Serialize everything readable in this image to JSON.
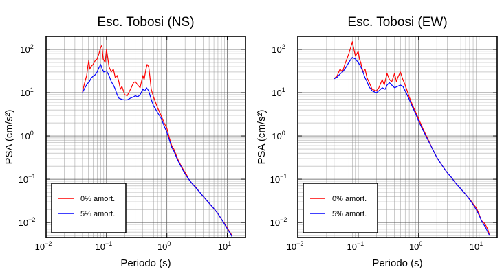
{
  "chart_data": [
    {
      "type": "line",
      "title": "Esc. Tobosi (NS)",
      "xlabel": "Periodo (s)",
      "ylabel": "PSA (cm/s²)",
      "x_scale": "log",
      "y_scale": "log",
      "xlim": [
        0.01,
        20
      ],
      "ylim": [
        0.0045,
        200
      ],
      "grid": true,
      "legend_position": "bottom-left",
      "x_ticks": [
        {
          "base": "10",
          "exp": "−2"
        },
        {
          "base": "10",
          "exp": "−1"
        },
        {
          "base": "10",
          "exp": "0"
        },
        {
          "base": "10",
          "exp": "1"
        }
      ],
      "y_ticks": [
        {
          "base": "10",
          "exp": "−2"
        },
        {
          "base": "10",
          "exp": "−1"
        },
        {
          "base": "10",
          "exp": "0"
        },
        {
          "base": "10",
          "exp": "1"
        },
        {
          "base": "10",
          "exp": "2"
        }
      ],
      "series": [
        {
          "name": "0% amort.",
          "color": "#ff0000",
          "points": [
            [
              0.04,
              10.5
            ],
            [
              0.044,
              18
            ],
            [
              0.047,
              25
            ],
            [
              0.049,
              40
            ],
            [
              0.051,
              55
            ],
            [
              0.053,
              35
            ],
            [
              0.055,
              40
            ],
            [
              0.06,
              45
            ],
            [
              0.065,
              55
            ],
            [
              0.07,
              60
            ],
            [
              0.075,
              80
            ],
            [
              0.08,
              110
            ],
            [
              0.084,
              125
            ],
            [
              0.088,
              60
            ],
            [
              0.095,
              50
            ],
            [
              0.1,
              100
            ],
            [
              0.104,
              70
            ],
            [
              0.11,
              40
            ],
            [
              0.12,
              30
            ],
            [
              0.13,
              35
            ],
            [
              0.14,
              22
            ],
            [
              0.15,
              25
            ],
            [
              0.16,
              18
            ],
            [
              0.17,
              12
            ],
            [
              0.18,
              14
            ],
            [
              0.2,
              9
            ],
            [
              0.22,
              8.5
            ],
            [
              0.25,
              12
            ],
            [
              0.28,
              17
            ],
            [
              0.3,
              18
            ],
            [
              0.33,
              15
            ],
            [
              0.36,
              13
            ],
            [
              0.4,
              25
            ],
            [
              0.42,
              20
            ],
            [
              0.45,
              35
            ],
            [
              0.47,
              45
            ],
            [
              0.5,
              40
            ],
            [
              0.52,
              25
            ],
            [
              0.55,
              12
            ],
            [
              0.6,
              8
            ],
            [
              0.7,
              4.5
            ],
            [
              0.8,
              3
            ],
            [
              0.9,
              2
            ],
            [
              1.0,
              1.5
            ],
            [
              1.1,
              0.9
            ],
            [
              1.2,
              0.6
            ],
            [
              1.3,
              0.5
            ],
            [
              1.5,
              0.3
            ],
            [
              1.7,
              0.21
            ],
            [
              1.9,
              0.16
            ],
            [
              2.1,
              0.13
            ],
            [
              2.3,
              0.1
            ],
            [
              2.6,
              0.08
            ],
            [
              3.0,
              0.066
            ],
            [
              3.5,
              0.05
            ],
            [
              4.0,
              0.04
            ],
            [
              5.0,
              0.028
            ],
            [
              6.0,
              0.021
            ],
            [
              7.0,
              0.016
            ],
            [
              8.0,
              0.012
            ],
            [
              9.0,
              0.0095
            ],
            [
              10.0,
              0.0075
            ],
            [
              11.0,
              0.006
            ],
            [
              12.0,
              0.005
            ]
          ]
        },
        {
          "name": "5% amort.",
          "color": "#0000ff",
          "points": [
            [
              0.04,
              10
            ],
            [
              0.044,
              13
            ],
            [
              0.048,
              16
            ],
            [
              0.052,
              18
            ],
            [
              0.056,
              22
            ],
            [
              0.06,
              24
            ],
            [
              0.065,
              26
            ],
            [
              0.07,
              30
            ],
            [
              0.075,
              38
            ],
            [
              0.08,
              45
            ],
            [
              0.085,
              35
            ],
            [
              0.09,
              30
            ],
            [
              0.1,
              32
            ],
            [
              0.11,
              25
            ],
            [
              0.12,
              18
            ],
            [
              0.13,
              15
            ],
            [
              0.14,
              12
            ],
            [
              0.15,
              9
            ],
            [
              0.16,
              7.5
            ],
            [
              0.18,
              7
            ],
            [
              0.2,
              6.8
            ],
            [
              0.22,
              6.8
            ],
            [
              0.25,
              7.5
            ],
            [
              0.28,
              8
            ],
            [
              0.3,
              8.5
            ],
            [
              0.33,
              8
            ],
            [
              0.36,
              9
            ],
            [
              0.4,
              12
            ],
            [
              0.43,
              11
            ],
            [
              0.46,
              13
            ],
            [
              0.5,
              11
            ],
            [
              0.55,
              7
            ],
            [
              0.6,
              5
            ],
            [
              0.7,
              3.5
            ],
            [
              0.8,
              2.6
            ],
            [
              0.9,
              1.7
            ],
            [
              1.0,
              1.2
            ],
            [
              1.1,
              0.8
            ],
            [
              1.2,
              0.55
            ],
            [
              1.3,
              0.45
            ],
            [
              1.5,
              0.28
            ],
            [
              1.7,
              0.2
            ],
            [
              1.9,
              0.15
            ],
            [
              2.1,
              0.12
            ],
            [
              2.3,
              0.1
            ],
            [
              2.6,
              0.08
            ],
            [
              3.0,
              0.064
            ],
            [
              3.5,
              0.05
            ],
            [
              4.0,
              0.04
            ],
            [
              5.0,
              0.028
            ],
            [
              6.0,
              0.021
            ],
            [
              7.0,
              0.016
            ],
            [
              8.0,
              0.012
            ],
            [
              9.0,
              0.0092
            ],
            [
              10.0,
              0.0072
            ],
            [
              11.0,
              0.0058
            ],
            [
              12.0,
              0.0047
            ]
          ]
        }
      ]
    },
    {
      "type": "line",
      "title": "Esc. Tobosi (EW)",
      "xlabel": "Periodo (s)",
      "ylabel": "PSA (cm/s²)",
      "x_scale": "log",
      "y_scale": "log",
      "xlim": [
        0.01,
        20
      ],
      "ylim": [
        0.0045,
        200
      ],
      "grid": true,
      "legend_position": "bottom-left",
      "x_ticks": [
        {
          "base": "10",
          "exp": "−2"
        },
        {
          "base": "10",
          "exp": "−1"
        },
        {
          "base": "10",
          "exp": "0"
        },
        {
          "base": "10",
          "exp": "1"
        }
      ],
      "y_ticks": [
        {
          "base": "10",
          "exp": "−2"
        },
        {
          "base": "10",
          "exp": "−1"
        },
        {
          "base": "10",
          "exp": "0"
        },
        {
          "base": "10",
          "exp": "1"
        },
        {
          "base": "10",
          "exp": "2"
        }
      ],
      "series": [
        {
          "name": "0% amort.",
          "color": "#ff0000",
          "points": [
            [
              0.04,
              21
            ],
            [
              0.045,
              25
            ],
            [
              0.05,
              35
            ],
            [
              0.055,
              30
            ],
            [
              0.06,
              45
            ],
            [
              0.065,
              60
            ],
            [
              0.07,
              80
            ],
            [
              0.075,
              110
            ],
            [
              0.08,
              150
            ],
            [
              0.085,
              100
            ],
            [
              0.09,
              70
            ],
            [
              0.1,
              90
            ],
            [
              0.105,
              60
            ],
            [
              0.11,
              50
            ],
            [
              0.12,
              30
            ],
            [
              0.13,
              35
            ],
            [
              0.14,
              22
            ],
            [
              0.15,
              18
            ],
            [
              0.17,
              12
            ],
            [
              0.2,
              11
            ],
            [
              0.22,
              13
            ],
            [
              0.25,
              20
            ],
            [
              0.27,
              15
            ],
            [
              0.3,
              28
            ],
            [
              0.33,
              20
            ],
            [
              0.36,
              18
            ],
            [
              0.4,
              28
            ],
            [
              0.43,
              18
            ],
            [
              0.45,
              22
            ],
            [
              0.5,
              30
            ],
            [
              0.55,
              20
            ],
            [
              0.6,
              15
            ],
            [
              0.7,
              8
            ],
            [
              0.8,
              5
            ],
            [
              0.9,
              3.5
            ],
            [
              1.0,
              2.5
            ],
            [
              1.2,
              1.4
            ],
            [
              1.4,
              0.9
            ],
            [
              1.7,
              0.5
            ],
            [
              2.0,
              0.32
            ],
            [
              2.5,
              0.2
            ],
            [
              3.0,
              0.14
            ],
            [
              3.5,
              0.11
            ],
            [
              4.0,
              0.085
            ],
            [
              5.0,
              0.06
            ],
            [
              6.0,
              0.045
            ],
            [
              7.0,
              0.035
            ],
            [
              8.0,
              0.027
            ],
            [
              9.0,
              0.022
            ],
            [
              10.0,
              0.016
            ],
            [
              11.0,
              0.011
            ],
            [
              12.0,
              0.01
            ],
            [
              13.0,
              0.0085
            ],
            [
              14.0,
              0.007
            ],
            [
              15.0,
              0.005
            ]
          ]
        },
        {
          "name": "5% amort.",
          "color": "#0000ff",
          "points": [
            [
              0.04,
              21
            ],
            [
              0.045,
              23
            ],
            [
              0.05,
              27
            ],
            [
              0.055,
              30
            ],
            [
              0.06,
              35
            ],
            [
              0.065,
              42
            ],
            [
              0.07,
              50
            ],
            [
              0.075,
              58
            ],
            [
              0.08,
              65
            ],
            [
              0.09,
              60
            ],
            [
              0.1,
              50
            ],
            [
              0.11,
              40
            ],
            [
              0.12,
              30
            ],
            [
              0.13,
              22
            ],
            [
              0.14,
              18
            ],
            [
              0.15,
              14
            ],
            [
              0.17,
              11
            ],
            [
              0.2,
              10
            ],
            [
              0.22,
              11
            ],
            [
              0.25,
              13
            ],
            [
              0.28,
              12
            ],
            [
              0.3,
              15
            ],
            [
              0.33,
              17
            ],
            [
              0.36,
              15
            ],
            [
              0.4,
              13
            ],
            [
              0.45,
              14
            ],
            [
              0.5,
              15
            ],
            [
              0.55,
              14
            ],
            [
              0.6,
              11
            ],
            [
              0.7,
              7
            ],
            [
              0.8,
              4.5
            ],
            [
              0.9,
              3.2
            ],
            [
              1.0,
              2.2
            ],
            [
              1.2,
              1.3
            ],
            [
              1.4,
              0.85
            ],
            [
              1.7,
              0.5
            ],
            [
              2.0,
              0.32
            ],
            [
              2.5,
              0.2
            ],
            [
              3.0,
              0.14
            ],
            [
              3.5,
              0.11
            ],
            [
              4.0,
              0.085
            ],
            [
              5.0,
              0.06
            ],
            [
              6.0,
              0.045
            ],
            [
              7.0,
              0.034
            ],
            [
              8.0,
              0.026
            ],
            [
              9.0,
              0.02
            ],
            [
              10.0,
              0.015
            ],
            [
              11.0,
              0.011
            ],
            [
              12.0,
              0.009
            ],
            [
              13.0,
              0.0075
            ],
            [
              14.0,
              0.006
            ],
            [
              15.0,
              0.005
            ]
          ]
        }
      ]
    }
  ]
}
